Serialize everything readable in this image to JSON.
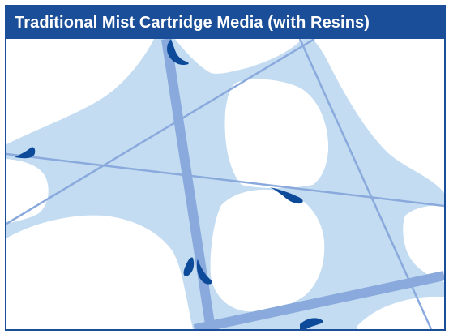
{
  "title": "Traditional Mist Cartridge Media (with Resins)",
  "colors": {
    "header_background": "#1a4e98",
    "header_text": "#ffffff",
    "frame_border": "#1a4e98",
    "resin_fill": "#c3dcf1",
    "fiber": "#8aa9dc",
    "droplet": "#0e4a9a",
    "pore": "#ffffff"
  }
}
